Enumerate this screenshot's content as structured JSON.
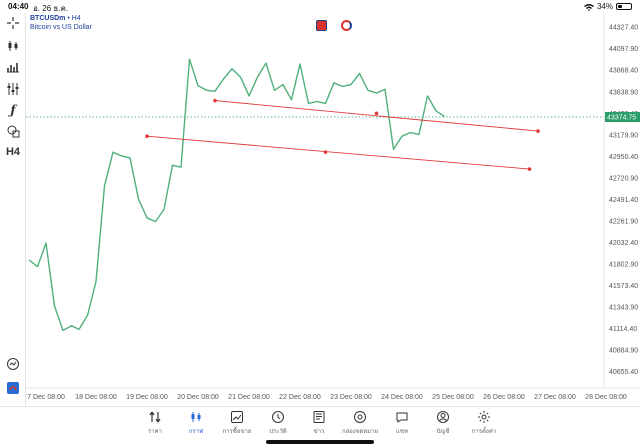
{
  "status_bar": {
    "time": "04:40",
    "date": "อ. 26 ธ.ค.",
    "battery": "34%",
    "battery_level": 0.34
  },
  "header": {
    "symbol": "BTCUSDm",
    "timeframe_sep": "•",
    "timeframe": "H4",
    "description": "Bitcoin vs US Dollar"
  },
  "toolbar": {
    "timeframe_label": "H4"
  },
  "chart_data": {
    "type": "line",
    "series": [
      {
        "color": "#4fb07c",
        "points": [
          [
            "7 Dec 00:00",
            41850
          ],
          [
            "7 Dec 04:00",
            41780
          ],
          [
            "7 Dec 08:00",
            42030
          ],
          [
            "7 Dec 12:00",
            41360
          ],
          [
            "7 Dec 16:00",
            41100
          ],
          [
            "7 Dec 20:00",
            41150
          ],
          [
            "18 Dec 00:00",
            41110
          ],
          [
            "18 Dec 04:00",
            41260
          ],
          [
            "18 Dec 08:00",
            41620
          ],
          [
            "18 Dec 12:00",
            42640
          ],
          [
            "18 Dec 16:00",
            43000
          ],
          [
            "18 Dec 20:00",
            42960
          ],
          [
            "19 Dec 00:00",
            42940
          ],
          [
            "19 Dec 04:00",
            42500
          ],
          [
            "19 Dec 08:00",
            42300
          ],
          [
            "19 Dec 12:00",
            42260
          ],
          [
            "19 Dec 16:00",
            42390
          ],
          [
            "19 Dec 20:00",
            42860
          ],
          [
            "20 Dec 00:00",
            42840
          ],
          [
            "20 Dec 04:00",
            43990
          ],
          [
            "20 Dec 08:00",
            43710
          ],
          [
            "20 Dec 12:00",
            43660
          ],
          [
            "20 Dec 16:00",
            43650
          ],
          [
            "20 Dec 20:00",
            43780
          ],
          [
            "21 Dec 00:00",
            43890
          ],
          [
            "21 Dec 04:00",
            43800
          ],
          [
            "21 Dec 08:00",
            43600
          ],
          [
            "21 Dec 12:00",
            43800
          ],
          [
            "21 Dec 16:00",
            43950
          ],
          [
            "21 Dec 20:00",
            43660
          ],
          [
            "22 Dec 00:00",
            43720
          ],
          [
            "22 Dec 04:00",
            43560
          ],
          [
            "22 Dec 08:00",
            43940
          ],
          [
            "22 Dec 12:00",
            43520
          ],
          [
            "22 Dec 16:00",
            43540
          ],
          [
            "22 Dec 20:00",
            43520
          ],
          [
            "23 Dec 00:00",
            43740
          ],
          [
            "23 Dec 04:00",
            43700
          ],
          [
            "23 Dec 08:00",
            43720
          ],
          [
            "23 Dec 12:00",
            43840
          ],
          [
            "23 Dec 16:00",
            43660
          ],
          [
            "23 Dec 20:00",
            43630
          ],
          [
            "24 Dec 00:00",
            43670
          ],
          [
            "24 Dec 04:00",
            43030
          ],
          [
            "24 Dec 08:00",
            43170
          ],
          [
            "24 Dec 12:00",
            43210
          ],
          [
            "24 Dec 16:00",
            43190
          ],
          [
            "24 Dec 20:00",
            43600
          ],
          [
            "25 Dec 00:00",
            43440
          ],
          [
            "25 Dec 04:00",
            43380
          ]
        ]
      }
    ],
    "trendlines": [
      {
        "color": "#e23a3a",
        "from": [
          "20 Dec 16:00",
          43550
        ],
        "mid": [
          "23 Dec 20:00",
          43415
        ],
        "to": [
          "27 Dec 00:00",
          43225
        ]
      },
      {
        "color": "#e23a3a",
        "from": [
          "19 Dec 08:00",
          43170
        ],
        "mid": [
          "22 Dec 20:00",
          43000
        ],
        "to": [
          "26 Dec 20:00",
          42820
        ]
      }
    ],
    "current_price": {
      "value": 43374.75,
      "label": "43374.75",
      "color": "#2a9d6b"
    },
    "y_ticks": [
      "44327.40",
      "44097.90",
      "43868.40",
      "43638.90",
      "43409.40",
      "43179.90",
      "42950.40",
      "42720.90",
      "42491.40",
      "42261.90",
      "42032.40",
      "41802.90",
      "41573.40",
      "41343.90",
      "41114.40",
      "40884.90",
      "40655.40"
    ],
    "y_range": [
      40560,
      44420
    ],
    "x_ticks": [
      "7 Dec 08:00",
      "18 Dec 08:00",
      "19 Dec 08:00",
      "20 Dec 08:00",
      "21 Dec 08:00",
      "22 Dec 08:00",
      "23 Dec 08:00",
      "24 Dec 08:00",
      "25 Dec 08:00",
      "26 Dec 08:00",
      "27 Dec 08:00",
      "28 Dec 08:00"
    ],
    "grid": false
  },
  "bottom_nav": [
    {
      "label": "ราคา",
      "icon": "quotes-icon"
    },
    {
      "label": "กราฟ",
      "icon": "chart-icon",
      "active": true
    },
    {
      "label": "การซื้อขาย",
      "icon": "trade-icon"
    },
    {
      "label": "ประวัติ",
      "icon": "history-icon"
    },
    {
      "label": "ข่าว",
      "icon": "news-icon"
    },
    {
      "label": "กล่องจดหมาย",
      "icon": "mailbox-icon"
    },
    {
      "label": "แชท",
      "icon": "chat-icon"
    },
    {
      "label": "บัญชี",
      "icon": "account-icon"
    },
    {
      "label": "การตั้งค่า",
      "icon": "settings-icon"
    }
  ],
  "colors": {
    "accent": "#2b6cd4",
    "symbol_text": "#1f3f9a",
    "line": "#4fb07c",
    "trend": "#e23a3a"
  }
}
